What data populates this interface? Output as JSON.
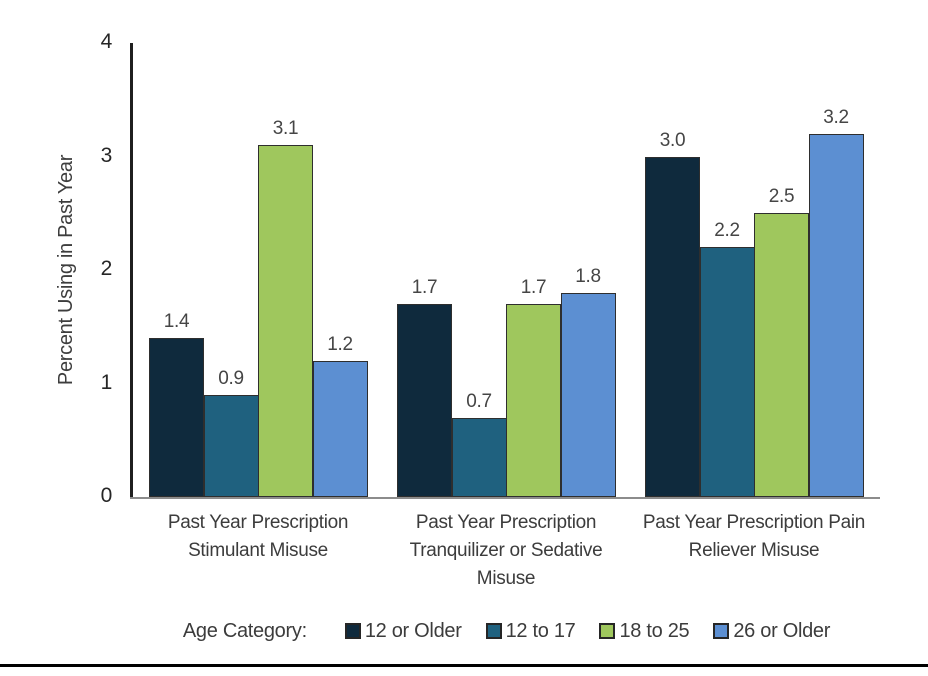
{
  "chart_data": {
    "type": "bar",
    "title": "",
    "xlabel": "",
    "ylabel": "Percent Using in Past Year",
    "ylim": [
      0,
      4
    ],
    "yticks": [
      0,
      1,
      2,
      3,
      4
    ],
    "grid": false,
    "legend_title": "Age Category:",
    "legend_position": "bottom",
    "value_labels": true,
    "categories": [
      "Past Year Prescription Stimulant Misuse",
      "Past Year Prescription Tranquilizer or Sedative Misuse",
      "Past Year Prescription Pain Reliever Misuse"
    ],
    "series": [
      {
        "name": "12 or Older",
        "color": "#0f2a3d",
        "values": [
          1.4,
          1.7,
          3.0
        ]
      },
      {
        "name": "12 to 17",
        "color": "#1f617f",
        "values": [
          0.9,
          0.7,
          2.2
        ]
      },
      {
        "name": "18 to 25",
        "color": "#9fc75d",
        "values": [
          3.1,
          1.7,
          2.5
        ]
      },
      {
        "name": "26 or Older",
        "color": "#5c8fd2",
        "values": [
          1.2,
          1.8,
          3.2
        ]
      }
    ],
    "colors": {
      "axis_line": "#1f1f1f",
      "baseline": "#8c8c8c",
      "bar_outline": "#2e2e2e",
      "text": "#3c3c3c",
      "bottom_rule": "#000000"
    }
  }
}
